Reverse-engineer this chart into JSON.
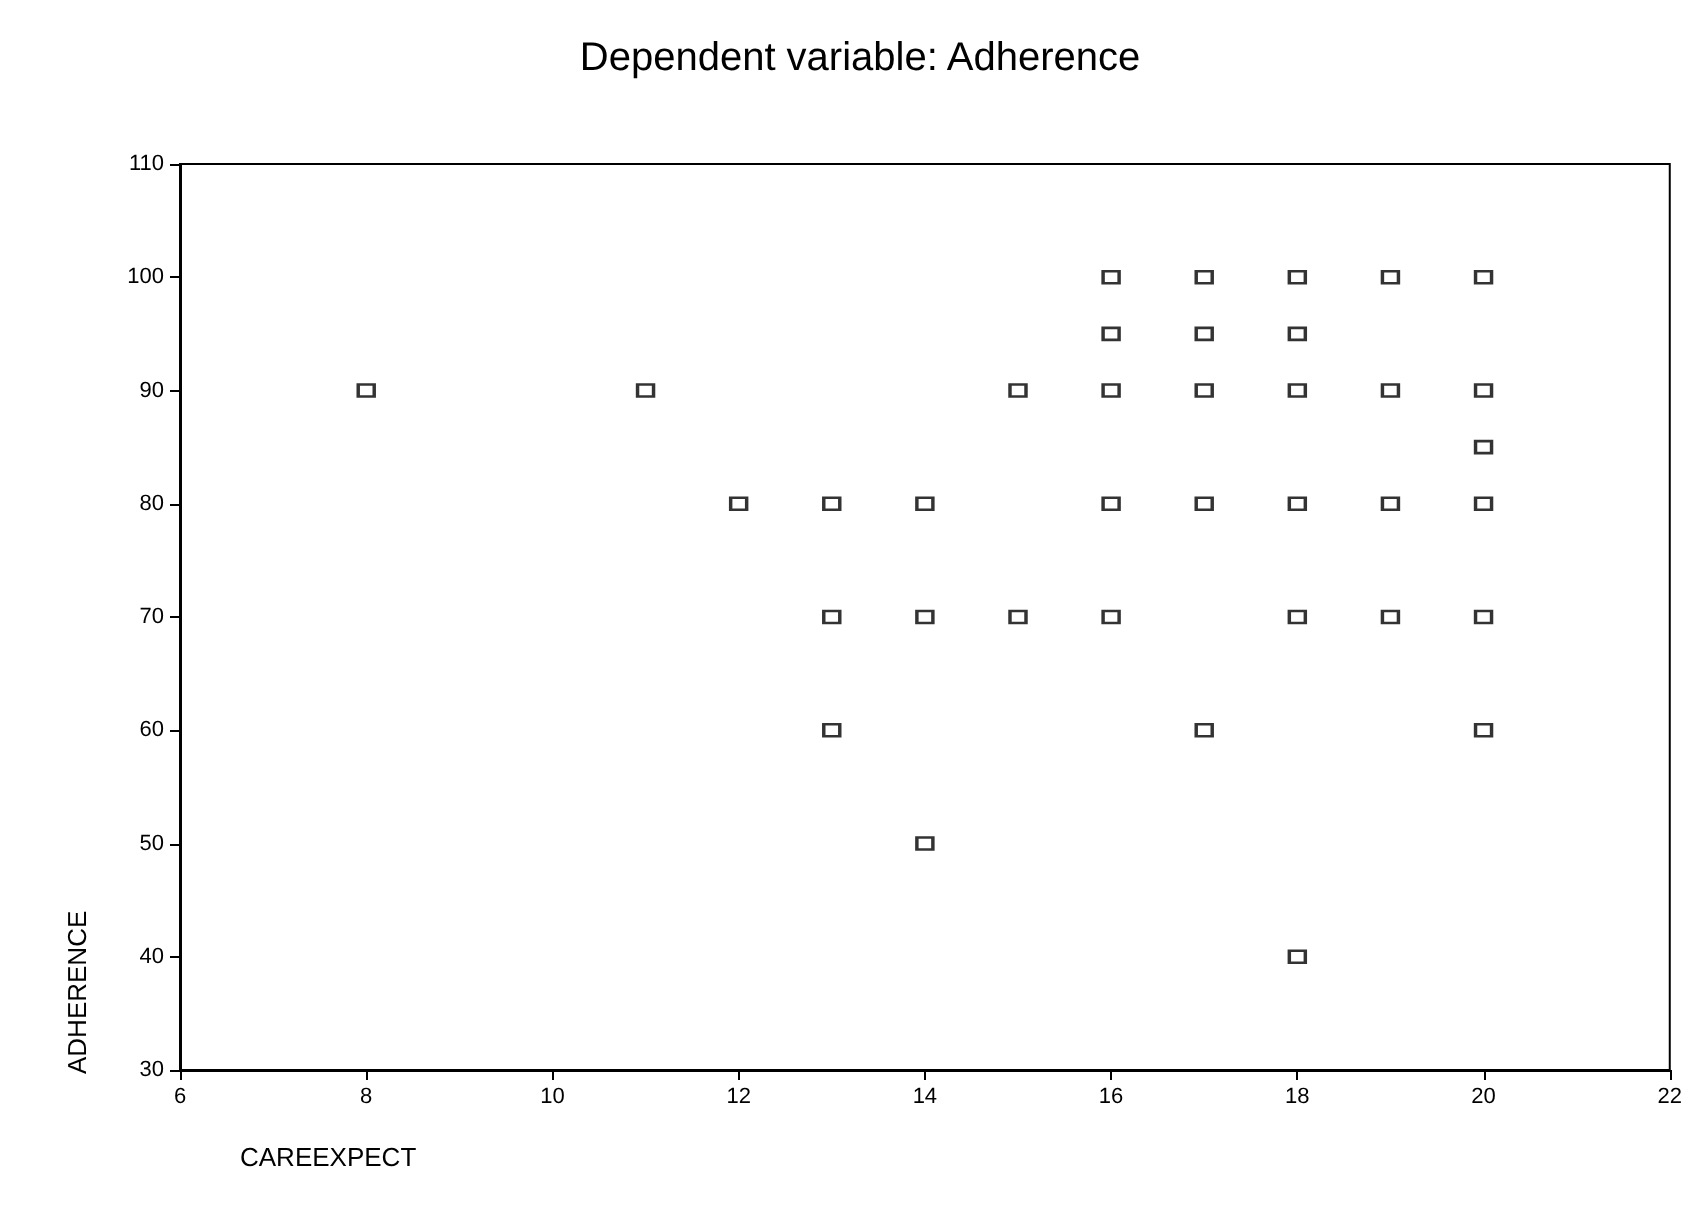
{
  "chart_data": {
    "type": "scatter",
    "title": "Dependent variable: Adherence",
    "xlabel": "CAREEXPECT",
    "ylabel": "ADHERENCE",
    "series": [
      {
        "color": "#000000",
        "x": [
          8,
          11,
          12,
          13,
          13,
          13,
          14,
          14,
          14,
          15,
          15,
          16,
          16,
          16,
          16,
          16,
          17,
          17,
          17,
          17,
          17,
          18,
          18,
          18,
          18,
          18,
          18,
          19,
          19,
          19,
          19,
          20,
          20,
          20,
          20,
          20,
          20
        ],
        "values": [
          90,
          90,
          80,
          80,
          70,
          60,
          80,
          70,
          50,
          90,
          70,
          100,
          95,
          90,
          80,
          70,
          100,
          95,
          90,
          80,
          60,
          100,
          95,
          90,
          80,
          70,
          40,
          100,
          90,
          80,
          70,
          100,
          90,
          85,
          80,
          70,
          60
        ]
      }
    ],
    "xlim": [
      6,
      22
    ],
    "xticks": [
      6,
      8,
      10,
      12,
      14,
      16,
      18,
      20,
      22
    ],
    "ylim": [
      30,
      110
    ],
    "yticks": [
      30,
      40,
      50,
      60,
      70,
      80,
      90,
      100,
      110
    ],
    "marker": "square",
    "grid": false
  }
}
